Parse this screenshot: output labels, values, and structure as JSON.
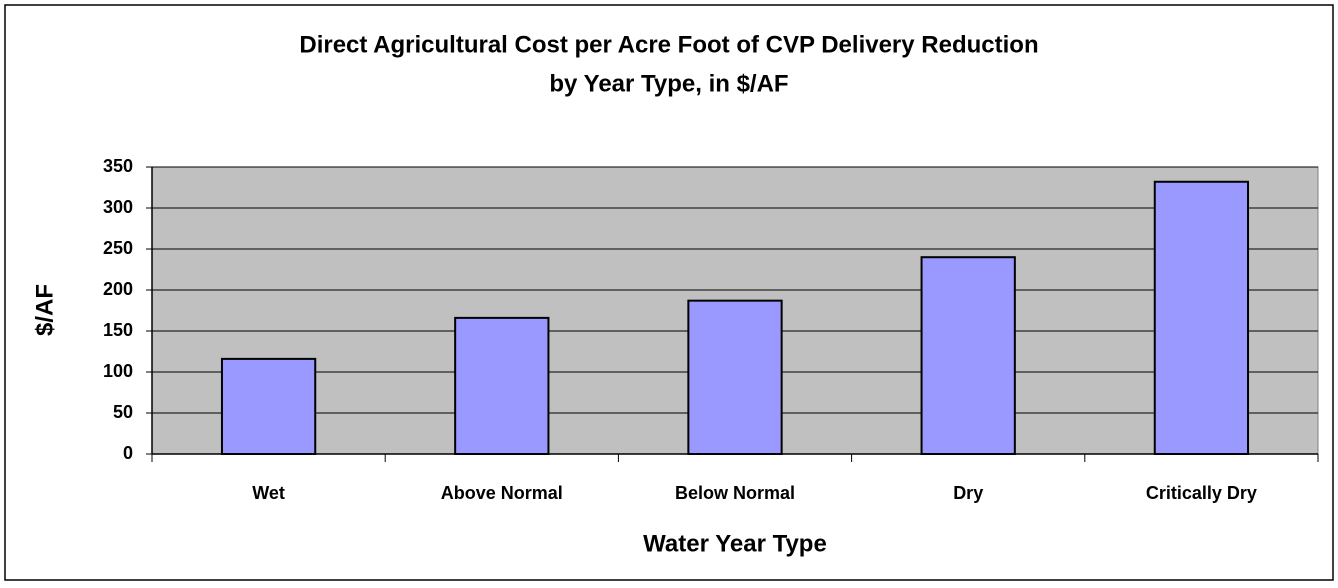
{
  "chart_data": {
    "type": "bar",
    "title": [
      "Direct Agricultural Cost per Acre Foot of CVP Delivery Reduction",
      "by Year Type, in $/AF"
    ],
    "x_label": "Water Year Type",
    "y_label": "$/AF",
    "categories": [
      "Wet",
      "Above Normal",
      "Below Normal",
      "Dry",
      "Critically Dry"
    ],
    "values": [
      116,
      166,
      187,
      240,
      332
    ],
    "color": "#9999ff",
    "ylim": [
      0,
      350
    ],
    "yticks": [
      0,
      50,
      100,
      150,
      200,
      250,
      300,
      350
    ],
    "grid": true
  }
}
